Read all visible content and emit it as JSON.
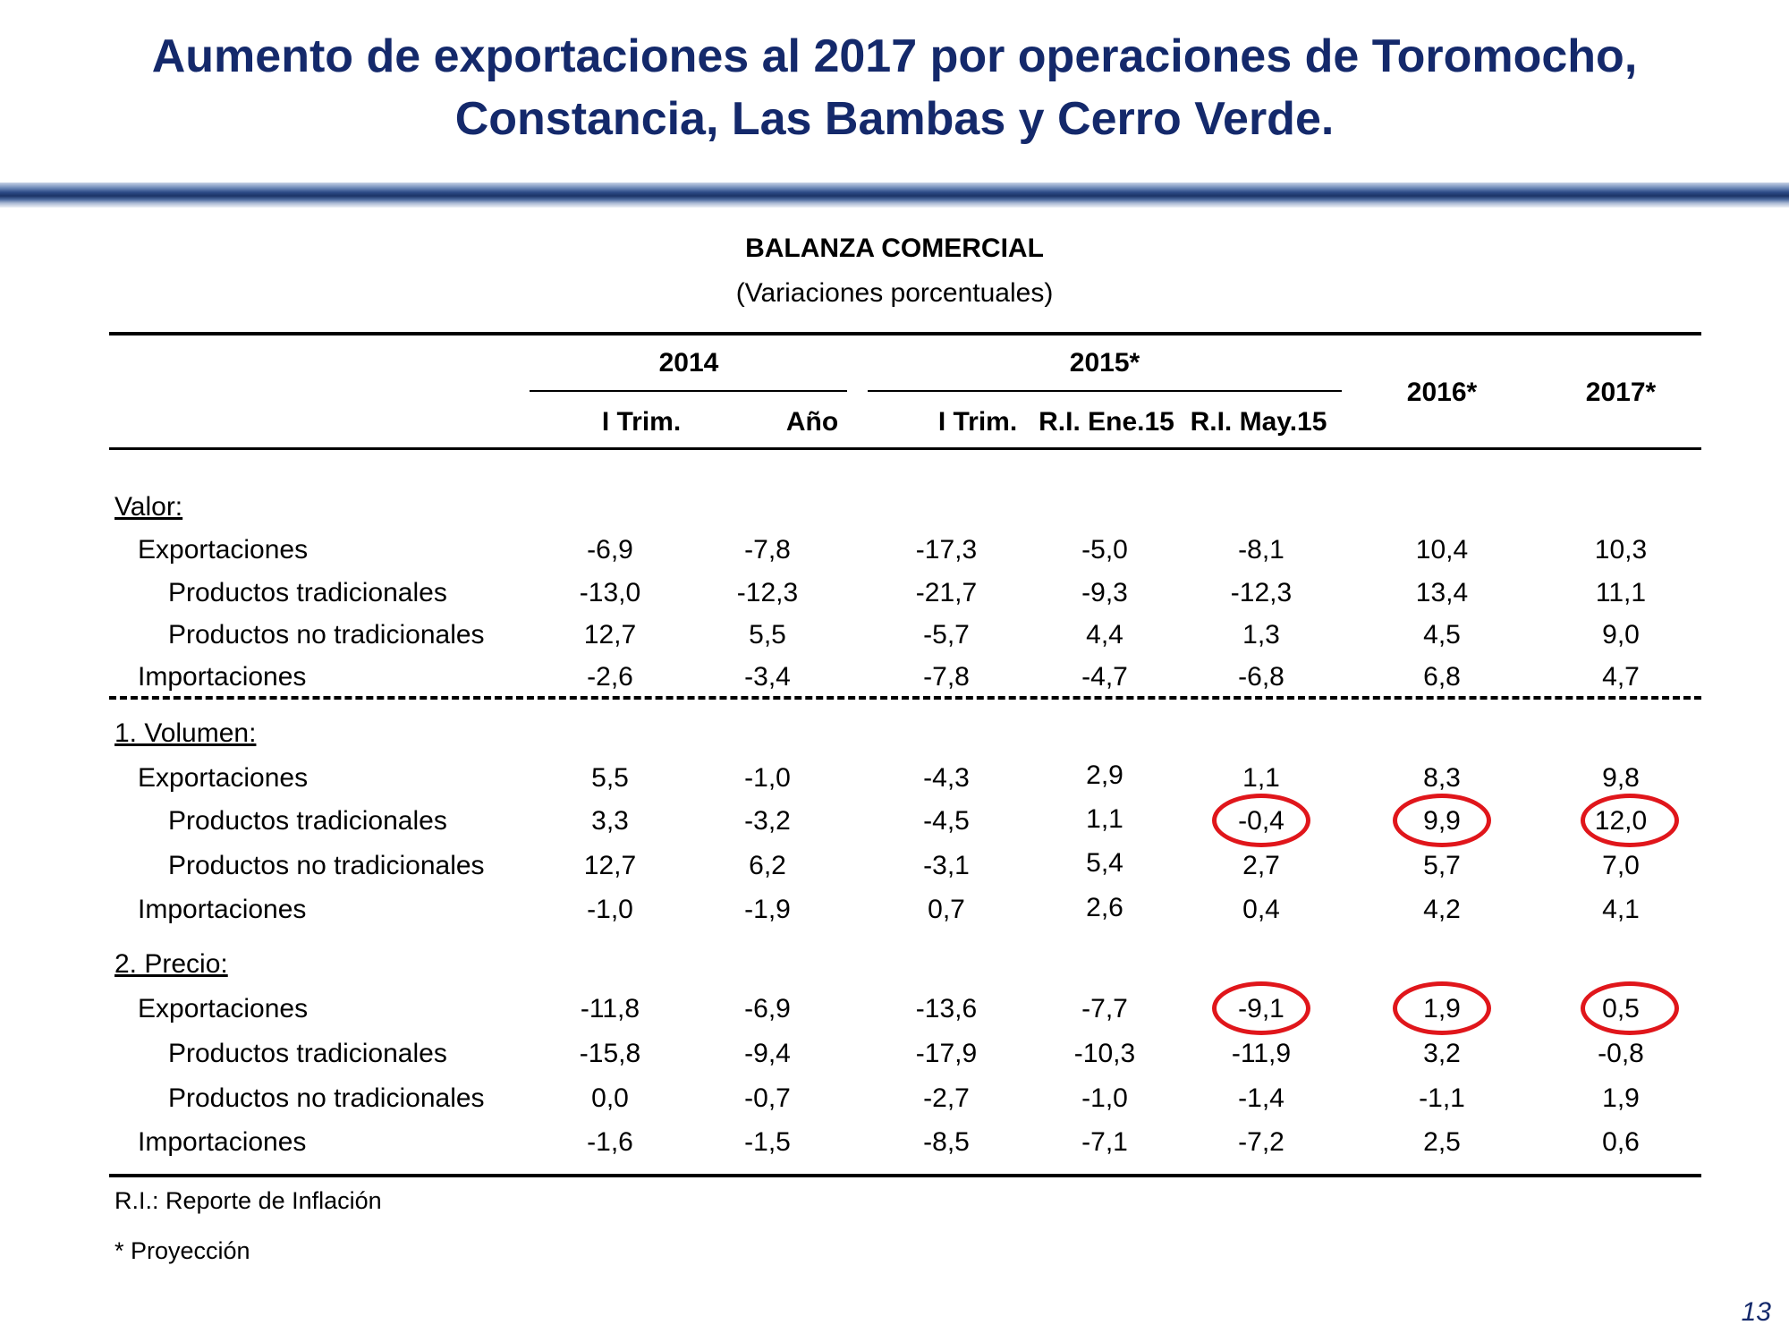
{
  "title": {
    "line1": "Aumento de exportaciones al 2017 por operaciones de Toromocho,",
    "line2": "Constancia, Las Bambas y Cerro Verde."
  },
  "table": {
    "title": "BALANZA COMERCIAL",
    "subtitle": "(Variaciones porcentuales)",
    "group_headers": [
      "2014",
      "2015*",
      "2016*",
      "2017*"
    ],
    "columns": [
      "I Trim.",
      "Año",
      "I Trim.",
      "R.I. Ene.15",
      "R.I. May.15"
    ],
    "sections": [
      {
        "label": "Valor:",
        "rows": [
          {
            "label": "Exportaciones",
            "indent": 1,
            "values": [
              "-6,9",
              "-7,8",
              "-17,3",
              "-5,0",
              "-8,1",
              "10,4",
              "10,3"
            ]
          },
          {
            "label": "Productos tradicionales",
            "indent": 2,
            "values": [
              "-13,0",
              "-12,3",
              "-21,7",
              "-9,3",
              "-12,3",
              "13,4",
              "11,1"
            ]
          },
          {
            "label": "Productos no tradicionales",
            "indent": 2,
            "values": [
              "12,7",
              "5,5",
              "-5,7",
              "4,4",
              "1,3",
              "4,5",
              "9,0"
            ]
          },
          {
            "label": "Importaciones",
            "indent": 1,
            "values": [
              "-2,6",
              "-3,4",
              "-7,8",
              "-4,7",
              "-6,8",
              "6,8",
              "4,7"
            ]
          }
        ]
      },
      {
        "label": "1. Volumen:",
        "rows": [
          {
            "label": "Exportaciones",
            "indent": 1,
            "values": [
              "5,5",
              "-1,0",
              "-4,3",
              "2,9",
              "1,1",
              "8,3",
              "9,8"
            ]
          },
          {
            "label": "Productos tradicionales",
            "indent": 2,
            "values": [
              "3,3",
              "-3,2",
              "-4,5",
              "1,1",
              "-0,4",
              "9,9",
              "12,0"
            ]
          },
          {
            "label": "Productos no tradicionales",
            "indent": 2,
            "values": [
              "12,7",
              "6,2",
              "-3,1",
              "5,4",
              "2,7",
              "5,7",
              "7,0"
            ]
          },
          {
            "label": "Importaciones",
            "indent": 1,
            "values": [
              "-1,0",
              "-1,9",
              "0,7",
              "2,6",
              "0,4",
              "4,2",
              "4,1"
            ]
          }
        ]
      },
      {
        "label": "2. Precio:",
        "rows": [
          {
            "label": "Exportaciones",
            "indent": 1,
            "values": [
              "-11,8",
              "-6,9",
              "-13,6",
              "-7,7",
              "-9,1",
              "1,9",
              "0,5"
            ]
          },
          {
            "label": "Productos tradicionales",
            "indent": 2,
            "values": [
              "-15,8",
              "-9,4",
              "-17,9",
              "-10,3",
              "-11,9",
              "3,2",
              "-0,8"
            ]
          },
          {
            "label": "Productos no tradicionales",
            "indent": 2,
            "values": [
              "0,0",
              "-0,7",
              "-2,7",
              "-1,0",
              "-1,4",
              "-1,1",
              "1,9"
            ]
          },
          {
            "label": "Importaciones",
            "indent": 1,
            "values": [
              "-1,6",
              "-1,5",
              "-8,5",
              "-7,1",
              "-7,2",
              "2,5",
              "0,6"
            ]
          }
        ]
      }
    ],
    "highlight_color": "#e0161b"
  },
  "notes": {
    "ri": "R.I.: Reporte de Inflación",
    "proj": "* Proyección"
  },
  "page_number": "13"
}
